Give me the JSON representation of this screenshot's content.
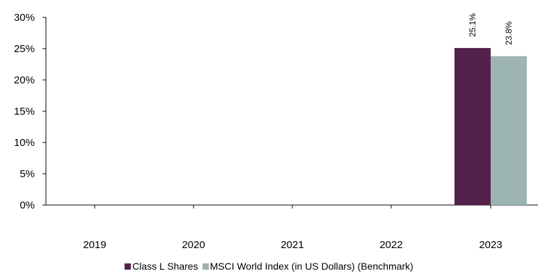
{
  "chart_data": {
    "type": "bar",
    "categories": [
      "2019",
      "2020",
      "2021",
      "2022",
      "2023"
    ],
    "series": [
      {
        "name": "Class L Shares",
        "color": "#54214a",
        "values": [
          null,
          null,
          null,
          null,
          25.1
        ],
        "labels": [
          "",
          "",
          "",
          "",
          "25.1%"
        ]
      },
      {
        "name": "MSCI World Index (in US Dollars) (Benchmark)",
        "color": "#9db5b2",
        "values": [
          null,
          null,
          null,
          null,
          23.8
        ],
        "labels": [
          "",
          "",
          "",
          "",
          "23.8%"
        ]
      }
    ],
    "ylim": [
      0,
      30
    ],
    "yticks": [
      0,
      5,
      10,
      15,
      20,
      25,
      30
    ],
    "ytick_labels": [
      "0%",
      "5%",
      "10%",
      "15%",
      "20%",
      "25%",
      "30%"
    ],
    "title": "",
    "xlabel": "",
    "ylabel": "",
    "grid": false,
    "legend_position": "bottom"
  }
}
